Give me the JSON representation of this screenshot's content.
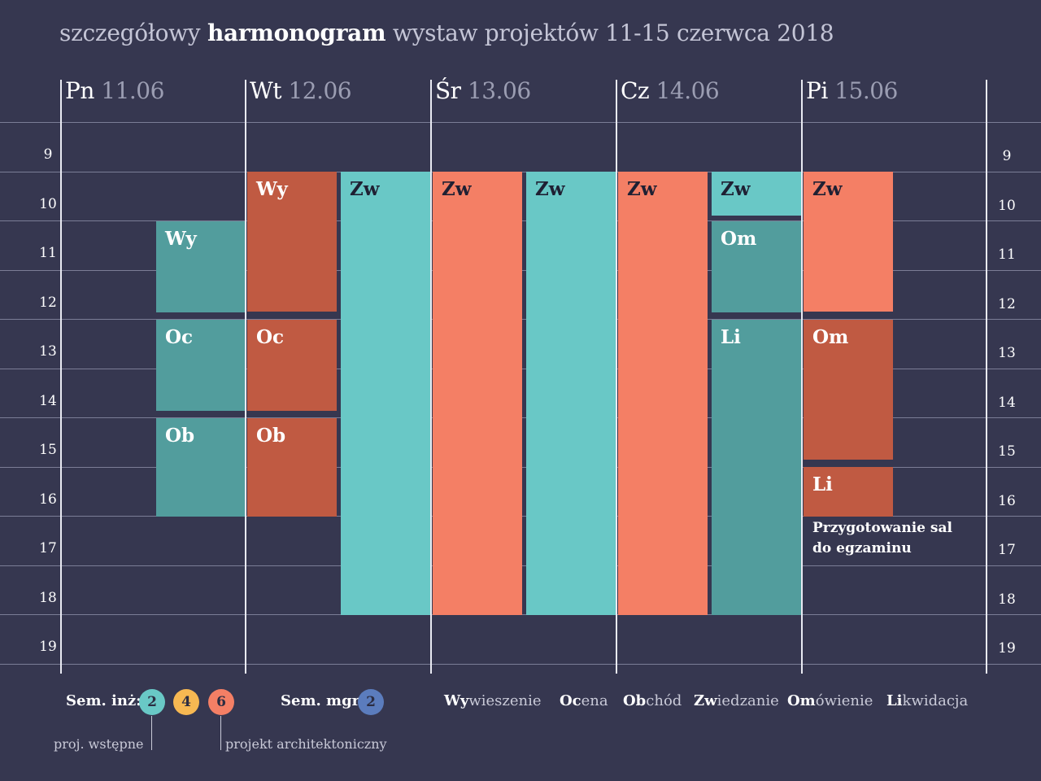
{
  "title": {
    "prefix": "szczegółowy ",
    "bold": "harmonogram",
    "suffix": " wystaw projektów 11-15 czerwca 2018"
  },
  "days": [
    {
      "name": "Pn",
      "date": "11.06"
    },
    {
      "name": "Wt",
      "date": "12.06"
    },
    {
      "name": "Śr",
      "date": "13.06"
    },
    {
      "name": "Cz",
      "date": "14.06"
    },
    {
      "name": "Pi",
      "date": "15.06"
    }
  ],
  "hours": [
    "9",
    "10",
    "11",
    "12",
    "13",
    "14",
    "15",
    "16",
    "17",
    "18",
    "19"
  ],
  "colors": {
    "teal": "#69c8c6",
    "teal_dark": "#529d9d",
    "salmon": "#f47f65",
    "brick": "#c05a42",
    "yellow": "#f7b852",
    "blue": "#5b7cbd"
  },
  "blocks": [
    {
      "day": 0,
      "slot": 1,
      "start": 10,
      "end": 11.85,
      "label": "Wy",
      "color": "teal_dark"
    },
    {
      "day": 0,
      "slot": 1,
      "start": 12,
      "end": 13.85,
      "label": "Oc",
      "color": "teal_dark"
    },
    {
      "day": 0,
      "slot": 1,
      "start": 14,
      "end": 16,
      "label": "Ob",
      "color": "teal_dark"
    },
    {
      "day": 1,
      "slot": 0,
      "start": 9,
      "end": 11.85,
      "label": "Wy",
      "color": "brick"
    },
    {
      "day": 1,
      "slot": 0,
      "start": 12,
      "end": 13.85,
      "label": "Oc",
      "color": "brick"
    },
    {
      "day": 1,
      "slot": 0,
      "start": 14,
      "end": 16,
      "label": "Ob",
      "color": "brick"
    },
    {
      "day": 1,
      "slot": 1,
      "start": 9,
      "end": 18,
      "label": "Zw",
      "color": "teal"
    },
    {
      "day": 2,
      "slot": 0,
      "start": 9,
      "end": 18,
      "label": "Zw",
      "color": "salmon"
    },
    {
      "day": 2,
      "slot": 1,
      "start": 9,
      "end": 18,
      "label": "Zw",
      "color": "teal"
    },
    {
      "day": 3,
      "slot": 0,
      "start": 9,
      "end": 18,
      "label": "Zw",
      "color": "salmon"
    },
    {
      "day": 3,
      "slot": 1,
      "start": 9,
      "end": 9.9,
      "label": "Zw",
      "color": "teal"
    },
    {
      "day": 3,
      "slot": 1,
      "start": 10,
      "end": 11.85,
      "label": "Om",
      "color": "teal_dark"
    },
    {
      "day": 3,
      "slot": 1,
      "start": 12,
      "end": 18,
      "label": "Li",
      "color": "teal_dark"
    },
    {
      "day": 4,
      "slot": 0,
      "start": 9,
      "end": 11.85,
      "label": "Zw",
      "color": "salmon"
    },
    {
      "day": 4,
      "slot": 0,
      "start": 12,
      "end": 14.85,
      "label": "Om",
      "color": "brick"
    },
    {
      "day": 4,
      "slot": 0,
      "start": 15,
      "end": 16,
      "label": "Li",
      "color": "brick"
    }
  ],
  "note": "Przygotowanie sal do egzaminu",
  "legend": {
    "sem_inz_label": "Sem. inż:",
    "sem_inz": [
      {
        "num": "2",
        "color": "teal"
      },
      {
        "num": "4",
        "color": "yellow"
      },
      {
        "num": "6",
        "color": "salmon"
      }
    ],
    "sem_mgr_label": "Sem. mgr:",
    "sem_mgr": [
      {
        "num": "2",
        "color": "blue"
      }
    ],
    "proj_wstepne": "proj. wstępne",
    "projekt_arch": "projekt architektoniczny",
    "abbreviations": [
      {
        "abbr": "Wy",
        "rest": "wieszenie"
      },
      {
        "abbr": "Oc",
        "rest": "ena"
      },
      {
        "abbr": "Ob",
        "rest": "chód"
      },
      {
        "abbr": "Zw",
        "rest": "iedzanie"
      },
      {
        "abbr": "Om",
        "rest": "ówienie"
      },
      {
        "abbr": "Li",
        "rest": "kwidacja"
      }
    ]
  }
}
